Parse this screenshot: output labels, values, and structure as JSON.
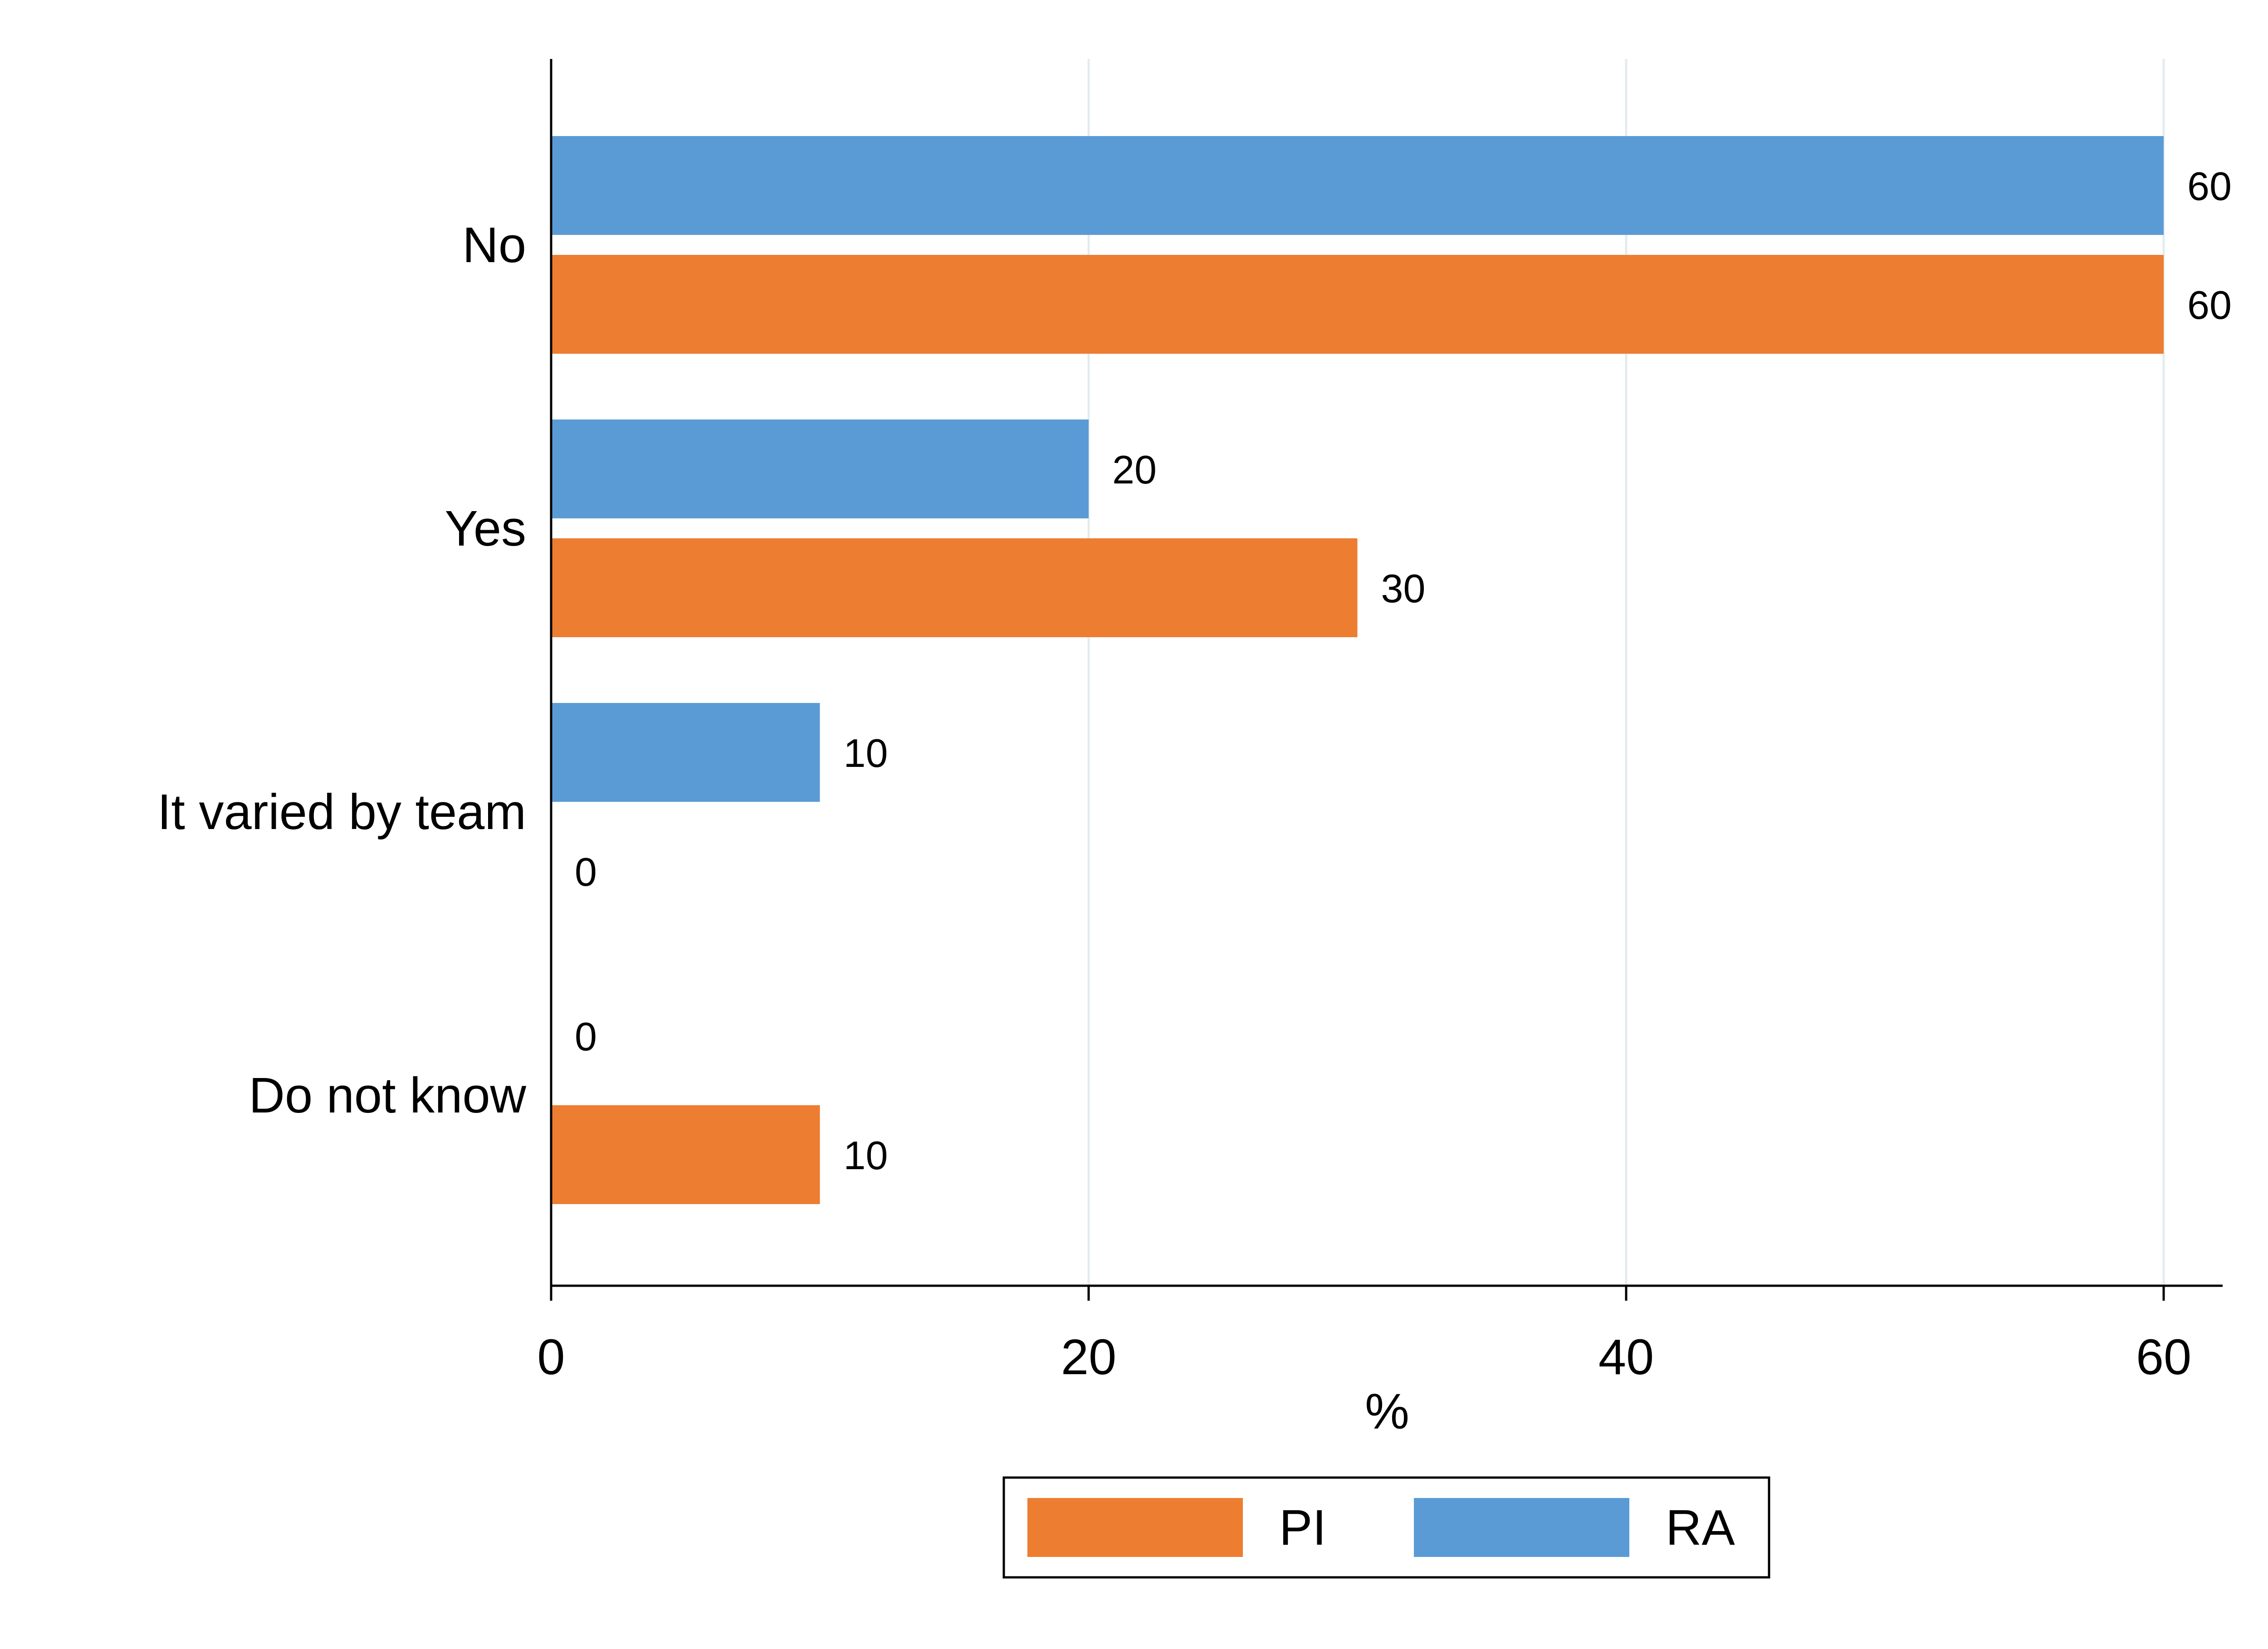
{
  "chart_data": {
    "type": "bar",
    "orientation": "horizontal",
    "categories": [
      "No",
      "Yes",
      "It varied by team",
      "Do not know"
    ],
    "series": [
      {
        "name": "RA",
        "values": [
          60,
          20,
          10,
          0
        ],
        "color": "#5B9BD5"
      },
      {
        "name": "PI",
        "values": [
          60,
          30,
          0,
          10
        ],
        "color": "#ED7D31"
      }
    ],
    "xlabel": "%",
    "ylabel": "",
    "xlim": [
      0,
      62
    ],
    "xticks": [
      0,
      20,
      40,
      60
    ],
    "grid": true,
    "legend": {
      "position": "bottom",
      "order": [
        "PI",
        "RA"
      ]
    },
    "data_labels": true
  }
}
